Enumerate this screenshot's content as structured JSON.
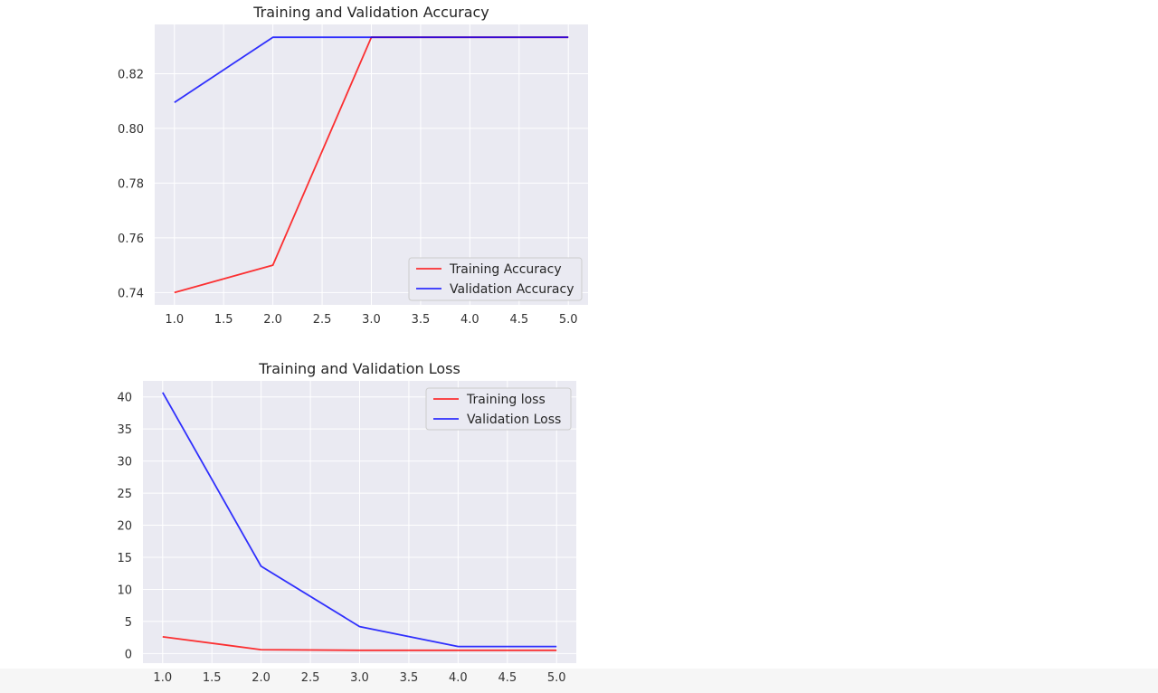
{
  "chart_data": [
    {
      "type": "line",
      "title": "Training and Validation Accuracy",
      "x": [
        1,
        2,
        3,
        4,
        5
      ],
      "series": [
        {
          "name": "Training Accuracy",
          "color": "#ff0000",
          "values": [
            0.74,
            0.75,
            0.8333,
            0.8333,
            0.8333
          ]
        },
        {
          "name": "Validation Accuracy",
          "color": "#0000ff",
          "values": [
            0.8095,
            0.8333,
            0.8333,
            0.8333,
            0.8333
          ]
        }
      ],
      "xlim": [
        0.8,
        5.2
      ],
      "ylim": [
        0.7355,
        0.838
      ],
      "xticks": [
        1.0,
        1.5,
        2.0,
        2.5,
        3.0,
        3.5,
        4.0,
        4.5,
        5.0
      ],
      "xtick_labels": [
        "1.0",
        "1.5",
        "2.0",
        "2.5",
        "3.0",
        "3.5",
        "4.0",
        "4.5",
        "5.0"
      ],
      "yticks": [
        0.74,
        0.76,
        0.78,
        0.8,
        0.82
      ],
      "ytick_labels": [
        "0.74",
        "0.76",
        "0.78",
        "0.80",
        "0.82"
      ],
      "grid": true,
      "legend_position": "lower right",
      "background": "#eaeaf2"
    },
    {
      "type": "line",
      "title": "Training and Validation Loss",
      "x": [
        1,
        2,
        3,
        4,
        5
      ],
      "series": [
        {
          "name": "Training loss",
          "color": "#ff0000",
          "values": [
            2.6,
            0.6,
            0.5,
            0.5,
            0.5
          ]
        },
        {
          "name": "Validation Loss",
          "color": "#0000ff",
          "values": [
            40.7,
            13.6,
            4.2,
            1.1,
            1.1
          ]
        }
      ],
      "xlim": [
        0.8,
        5.2
      ],
      "ylim": [
        -1.5,
        42.5
      ],
      "xticks": [
        1.0,
        1.5,
        2.0,
        2.5,
        3.0,
        3.5,
        4.0,
        4.5,
        5.0
      ],
      "xtick_labels": [
        "1.0",
        "1.5",
        "2.0",
        "2.5",
        "3.0",
        "3.5",
        "4.0",
        "4.5",
        "5.0"
      ],
      "yticks": [
        0,
        5,
        10,
        15,
        20,
        25,
        30,
        35,
        40
      ],
      "ytick_labels": [
        "0",
        "5",
        "10",
        "15",
        "20",
        "25",
        "30",
        "35",
        "40"
      ],
      "grid": true,
      "legend_position": "upper right",
      "background": "#eaeaf2"
    }
  ]
}
